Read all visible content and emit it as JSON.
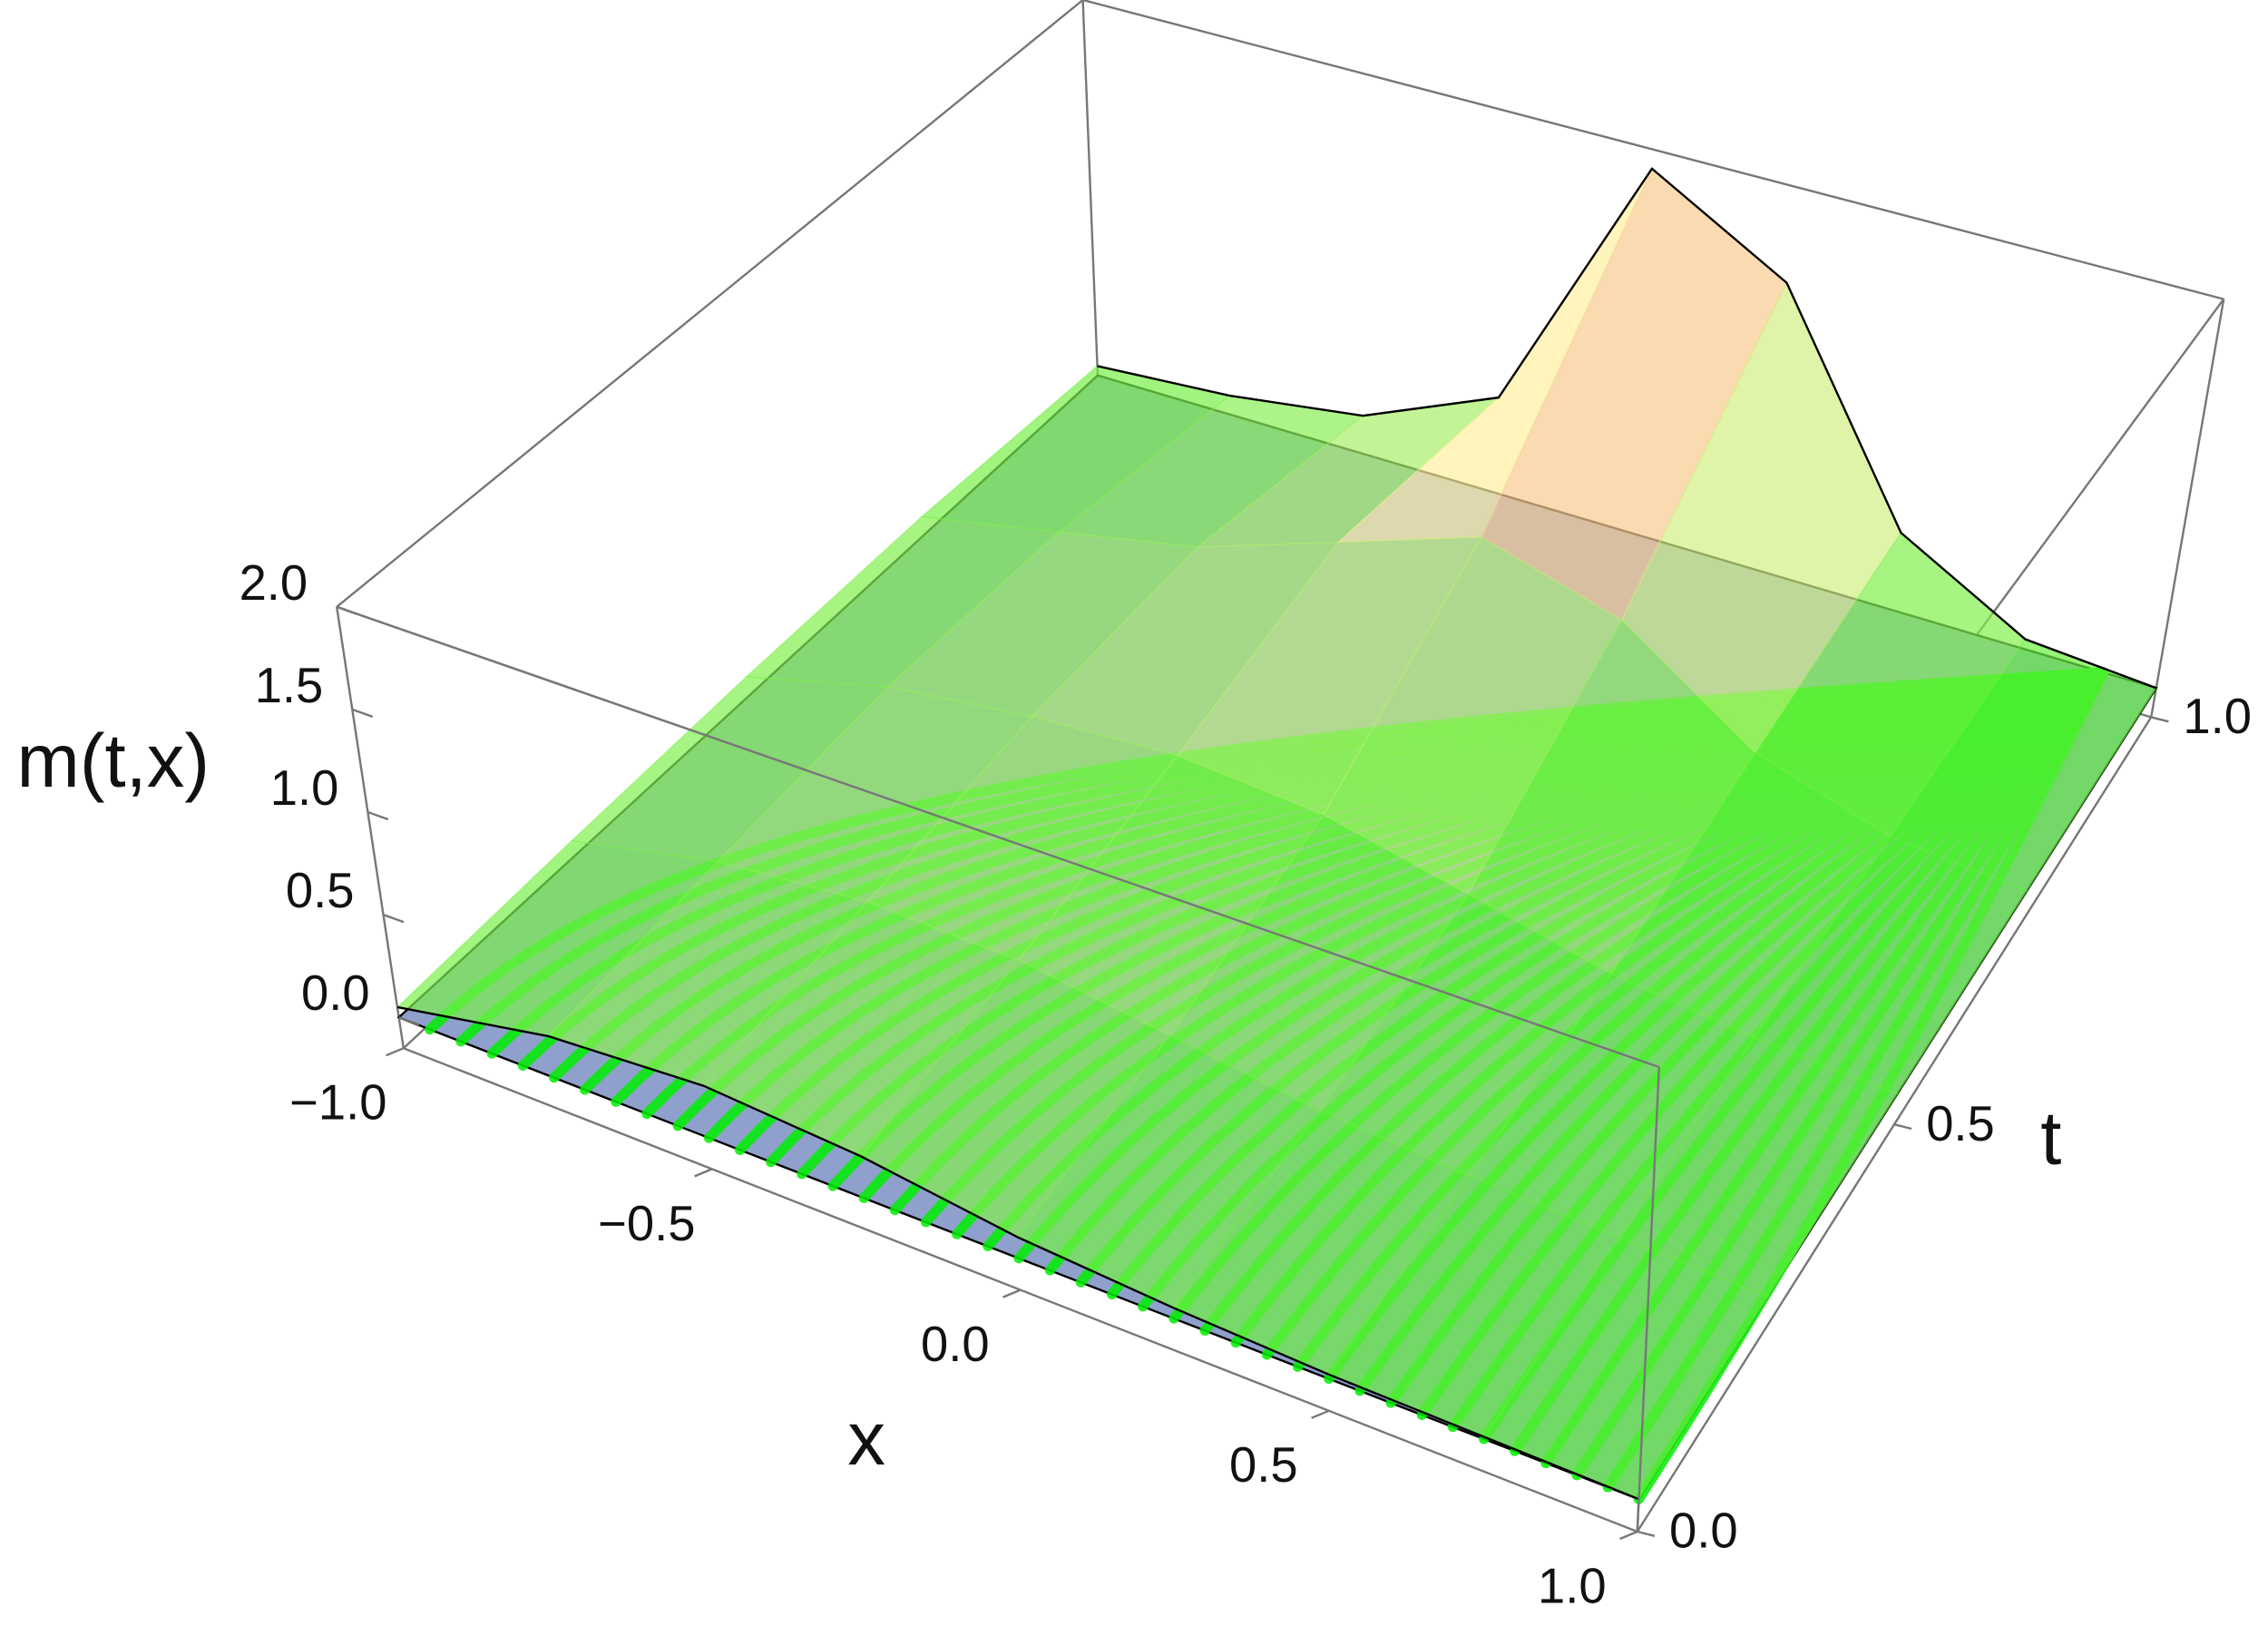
{
  "chart_data": {
    "type": "surface3d",
    "xlabel": "x",
    "ylabel": "t",
    "zlabel": "m(t,x)",
    "xlim": [
      -1,
      1
    ],
    "ylim": [
      0,
      1
    ],
    "zlim": [
      -0.15,
      2
    ],
    "xticks": [
      {
        "value": -1,
        "label": "−1.0"
      },
      {
        "value": -0.5,
        "label": "−0.5"
      },
      {
        "value": 0,
        "label": "0.0"
      },
      0.5,
      {
        "value": 1,
        "label": "1.0"
      }
    ],
    "yticks": [
      {
        "value": 0,
        "label": "0.0"
      },
      0.5,
      {
        "value": 1,
        "label": "1.0"
      }
    ],
    "zticks": [
      {
        "value": 0,
        "label": "0.0"
      },
      0.5,
      {
        "value": 1,
        "label": "1.0"
      },
      1.5,
      {
        "value": 2,
        "label": "2.0"
      }
    ],
    "plane_z": 0,
    "plane_color": "#8fa0cc",
    "x": [
      -1,
      -0.75,
      -0.5,
      -0.25,
      0,
      0.25,
      0.5,
      0.75,
      1
    ],
    "t": [
      0,
      0.25,
      0.5,
      0.75,
      1
    ],
    "z": [
      [
        0.05,
        0.2,
        0.25,
        0.2,
        0.1,
        0.05,
        0.02,
        0.01,
        0
      ],
      [
        0.08,
        0.25,
        0.32,
        0.3,
        0.2,
        0.1,
        0.05,
        0.02,
        0
      ],
      [
        0.1,
        0.3,
        0.4,
        0.45,
        0.4,
        0.25,
        0.1,
        0.03,
        0
      ],
      [
        0.1,
        0.25,
        0.4,
        0.65,
        0.9,
        0.7,
        0.25,
        0.05,
        0
      ],
      [
        0.05,
        0.1,
        0.2,
        0.5,
        1.9,
        1.5,
        0.4,
        0.05,
        0
      ]
    ]
  }
}
